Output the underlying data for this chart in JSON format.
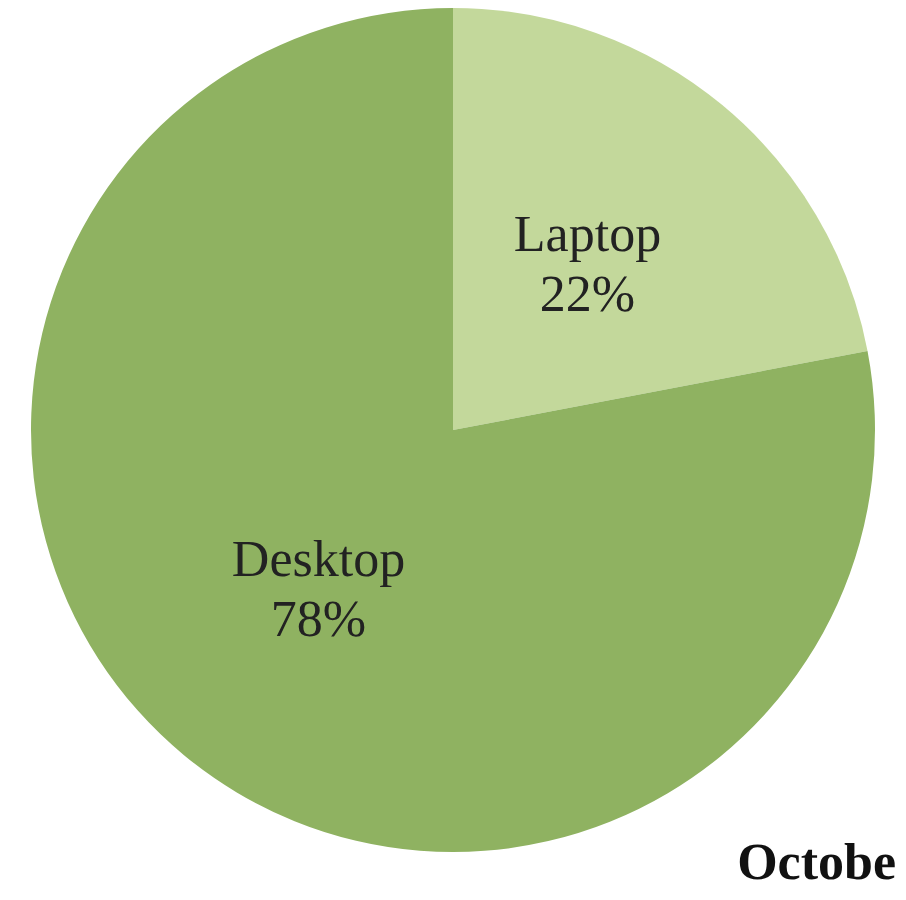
{
  "chart_data": {
    "type": "pie",
    "categories": [
      "Laptop",
      "Desktop"
    ],
    "values": [
      22,
      78
    ],
    "colors": [
      "#c3d89b",
      "#8fb261"
    ],
    "value_labels": [
      "22%",
      "78%"
    ],
    "annotations": [
      "Octobe"
    ],
    "legend": false
  }
}
